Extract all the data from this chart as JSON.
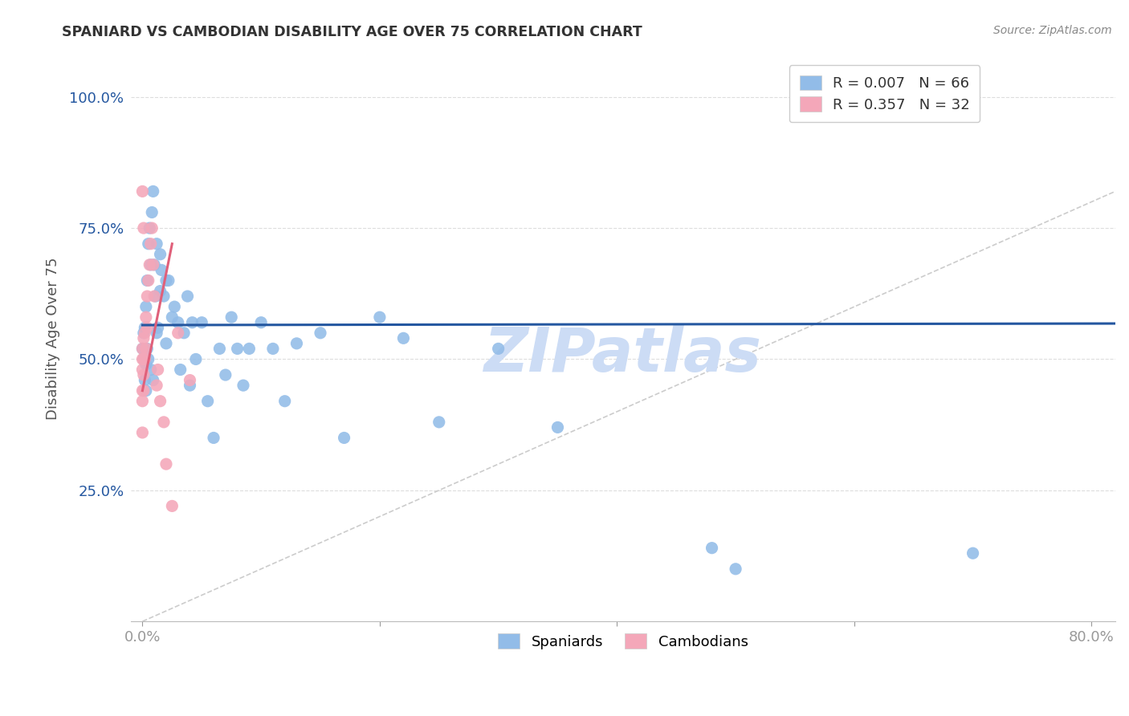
{
  "title": "SPANIARD VS CAMBODIAN DISABILITY AGE OVER 75 CORRELATION CHART",
  "source": "Source: ZipAtlas.com",
  "ylabel": "Disability Age Over 75",
  "spaniard_R": 0.007,
  "spaniard_N": 66,
  "cambodian_R": 0.357,
  "cambodian_N": 32,
  "spaniard_color": "#92bce8",
  "cambodian_color": "#f4a7b9",
  "spaniard_trend_color": "#2457a0",
  "cambodian_trend_color": "#e0607a",
  "diagonal_color": "#cccccc",
  "watermark_color": "#ccdcf5",
  "xlim": [
    -0.01,
    0.82
  ],
  "ylim": [
    0.0,
    1.08
  ],
  "xticks": [
    0.0,
    0.2,
    0.4,
    0.6,
    0.8
  ],
  "xticklabels": [
    "0.0%",
    "",
    "",
    "",
    "80.0%"
  ],
  "yticks": [
    0.25,
    0.5,
    0.75,
    1.0
  ],
  "yticklabels": [
    "25.0%",
    "50.0%",
    "75.0%",
    "100.0%"
  ],
  "spaniard_x": [
    0.001,
    0.002,
    0.002,
    0.003,
    0.003,
    0.004,
    0.005,
    0.006,
    0.007,
    0.008,
    0.009,
    0.01,
    0.011,
    0.012,
    0.013,
    0.015,
    0.015,
    0.016,
    0.018,
    0.02,
    0.022,
    0.025,
    0.027,
    0.03,
    0.032,
    0.035,
    0.038,
    0.04,
    0.042,
    0.045,
    0.05,
    0.055,
    0.06,
    0.065,
    0.07,
    0.075,
    0.08,
    0.085,
    0.09,
    0.1,
    0.11,
    0.12,
    0.13,
    0.15,
    0.17,
    0.2,
    0.22,
    0.25,
    0.3,
    0.35,
    0.0,
    0.001,
    0.002,
    0.003,
    0.004,
    0.005,
    0.007,
    0.009,
    0.012,
    0.02,
    0.59,
    0.625,
    0.655,
    0.5,
    0.48,
    0.7
  ],
  "spaniard_y": [
    0.55,
    0.56,
    0.5,
    0.6,
    0.49,
    0.65,
    0.72,
    0.75,
    0.68,
    0.78,
    0.82,
    0.68,
    0.62,
    0.72,
    0.56,
    0.63,
    0.7,
    0.67,
    0.62,
    0.65,
    0.65,
    0.58,
    0.6,
    0.57,
    0.48,
    0.55,
    0.62,
    0.45,
    0.57,
    0.5,
    0.57,
    0.42,
    0.35,
    0.52,
    0.47,
    0.58,
    0.52,
    0.45,
    0.52,
    0.57,
    0.52,
    0.42,
    0.53,
    0.55,
    0.35,
    0.58,
    0.54,
    0.38,
    0.52,
    0.37,
    0.52,
    0.5,
    0.46,
    0.44,
    0.52,
    0.5,
    0.48,
    0.46,
    0.55,
    0.53,
    0.975,
    0.975,
    0.975,
    0.1,
    0.14,
    0.13
  ],
  "cambodian_x": [
    0.0,
    0.0,
    0.0,
    0.0,
    0.0,
    0.0,
    0.0,
    0.001,
    0.001,
    0.001,
    0.001,
    0.001,
    0.002,
    0.002,
    0.003,
    0.003,
    0.004,
    0.004,
    0.005,
    0.006,
    0.007,
    0.008,
    0.009,
    0.01,
    0.012,
    0.013,
    0.015,
    0.018,
    0.02,
    0.025,
    0.03,
    0.04
  ],
  "cambodian_y": [
    0.52,
    0.5,
    0.48,
    0.44,
    0.42,
    0.36,
    0.82,
    0.54,
    0.5,
    0.47,
    0.44,
    0.75,
    0.55,
    0.5,
    0.58,
    0.52,
    0.62,
    0.56,
    0.65,
    0.68,
    0.72,
    0.75,
    0.68,
    0.62,
    0.45,
    0.48,
    0.42,
    0.38,
    0.3,
    0.22,
    0.55,
    0.46
  ],
  "sp_trend_x": [
    0.0,
    0.82
  ],
  "sp_trend_y": [
    0.565,
    0.568
  ],
  "cam_trend_x": [
    0.0,
    0.025
  ],
  "cam_trend_y": [
    0.44,
    0.72
  ]
}
